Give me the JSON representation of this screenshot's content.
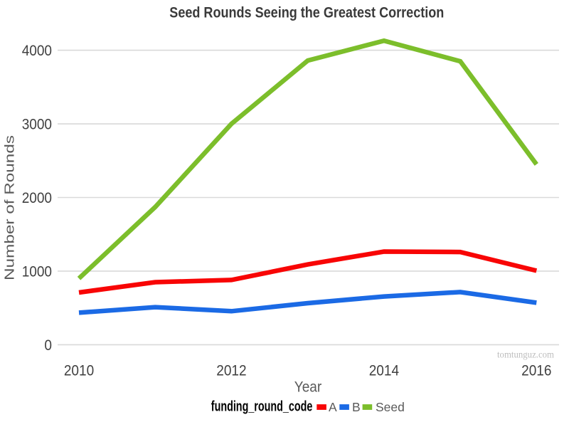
{
  "chart_data": {
    "type": "line",
    "title": "Seed Rounds Seeing the Greatest Correction",
    "xlabel": "Year",
    "ylabel": "Number of Rounds",
    "x": [
      2010,
      2011,
      2012,
      2013,
      2014,
      2015,
      2016
    ],
    "series": [
      {
        "name": "A",
        "color": "#F80505",
        "values": [
          710,
          850,
          880,
          1090,
          1265,
          1260,
          1005
        ]
      },
      {
        "name": "B",
        "color": "#1B6AE5",
        "values": [
          435,
          510,
          455,
          565,
          655,
          715,
          570
        ]
      },
      {
        "name": "Seed",
        "color": "#7CBE2B",
        "values": [
          900,
          1870,
          3000,
          3860,
          4130,
          3850,
          2450
        ]
      }
    ],
    "xticks": [
      2010,
      2012,
      2014,
      2016
    ],
    "yticks": [
      0,
      1000,
      2000,
      3000,
      4000
    ],
    "ylim": [
      0,
      4300
    ],
    "grid": "horizontal-major-only",
    "gridline_color": "#D9D9D9",
    "legend_position": "bottom",
    "legend_title": "funding_round_code"
  },
  "watermark": "tomtunguz.com"
}
